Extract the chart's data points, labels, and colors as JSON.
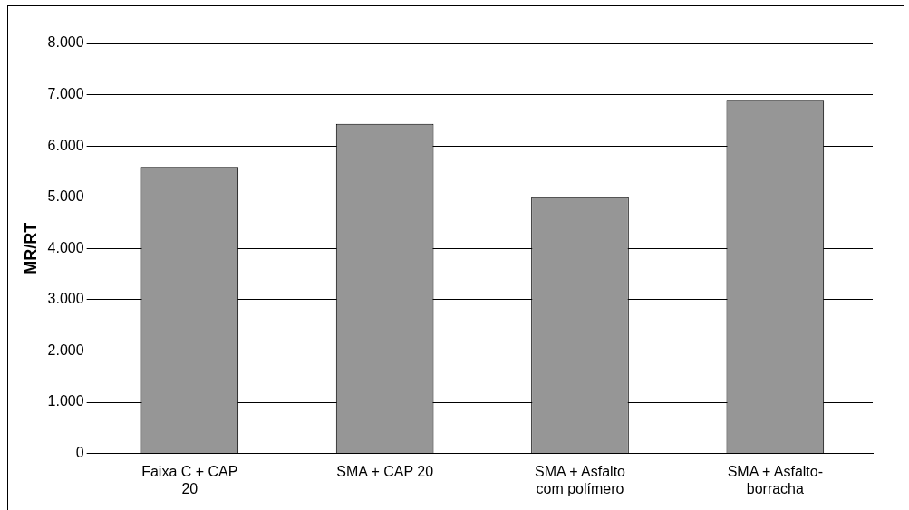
{
  "chart_data": {
    "type": "bar",
    "ylabel": "MR/RT",
    "categories": [
      "Faixa C + CAP 20",
      "SMA + CAP 20",
      "SMA + Asfalto com polímero",
      "SMA + Asfalto-borracha"
    ],
    "values": [
      5590,
      6430,
      5000,
      6900
    ],
    "color": "#969696",
    "ylim": [
      0,
      8000
    ],
    "yticks": [
      0,
      {
        "value": 1000,
        "label": "1.000"
      },
      {
        "value": 2000,
        "label": "2.000"
      },
      {
        "value": 3000,
        "label": "3.000"
      },
      {
        "value": 4000,
        "label": "4.000"
      },
      {
        "value": 5000,
        "label": "5.000"
      },
      {
        "value": 6000,
        "label": "6.000"
      },
      {
        "value": 7000,
        "label": "7.000"
      },
      {
        "value": 8000,
        "label": "8.000"
      }
    ],
    "grid": "y",
    "legend": false
  }
}
